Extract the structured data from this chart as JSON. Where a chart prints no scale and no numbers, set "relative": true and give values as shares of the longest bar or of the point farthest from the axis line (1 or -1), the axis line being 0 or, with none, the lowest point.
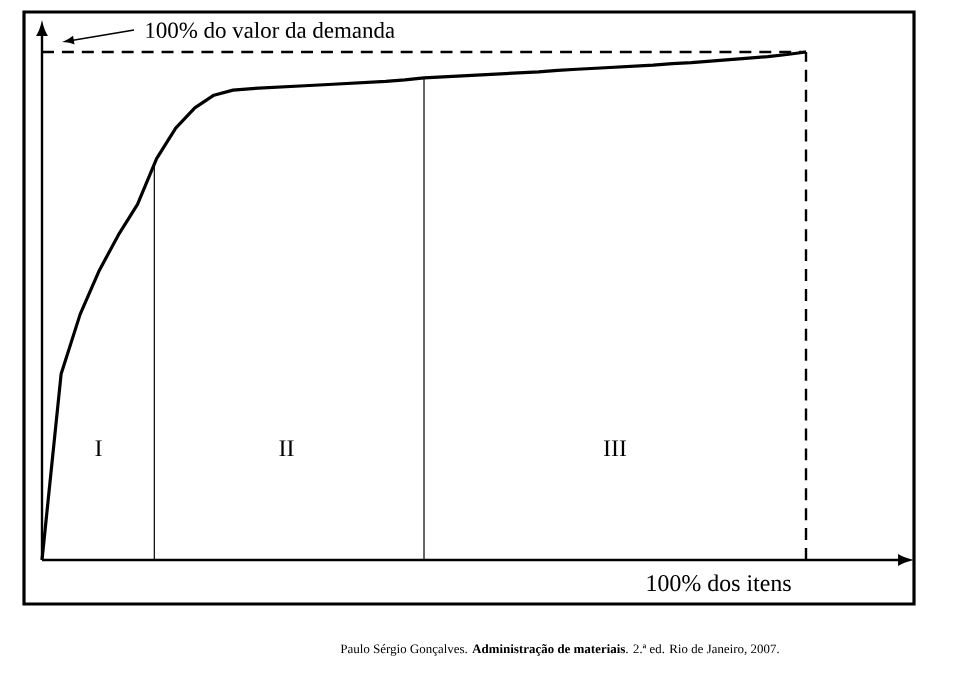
{
  "chart_data": {
    "type": "line",
    "relative": true,
    "color": "#000000",
    "categories": [
      null,
      null,
      null,
      null,
      null,
      null,
      null,
      null,
      null,
      null,
      null,
      null,
      null,
      null,
      null,
      null,
      null,
      null,
      null,
      null,
      null,
      null,
      null,
      null,
      null,
      null,
      null,
      null,
      null,
      null,
      null,
      null,
      null,
      null,
      null,
      null,
      null,
      null,
      null,
      null,
      null
    ],
    "values": [
      0,
      0.366,
      0.484,
      0.57,
      0.64,
      0.7,
      0.79,
      0.85,
      0.89,
      0.915,
      0.925,
      0.928,
      0.93,
      0.932,
      0.934,
      0.936,
      0.938,
      0.94,
      0.942,
      0.945,
      0.949,
      0.951,
      0.953,
      0.955,
      0.957,
      0.959,
      0.961,
      0.964,
      0.966,
      0.968,
      0.97,
      0.972,
      0.974,
      0.977,
      0.979,
      0.982,
      0.985,
      0.988,
      0.991,
      0.995,
      1
    ],
    "xlabel": "100% dos itens",
    "ref_lines": [
      {
        "axis": "y",
        "value": 1,
        "label": "100% do valor da demanda",
        "line_style": "dashed"
      }
    ],
    "annotations": [
      "I",
      "II",
      "III",
      "Paulo Sérgio Gonçalves. **Administração de materiais**. 2.ª ed. Rio de Janeiro, 2007."
    ]
  }
}
